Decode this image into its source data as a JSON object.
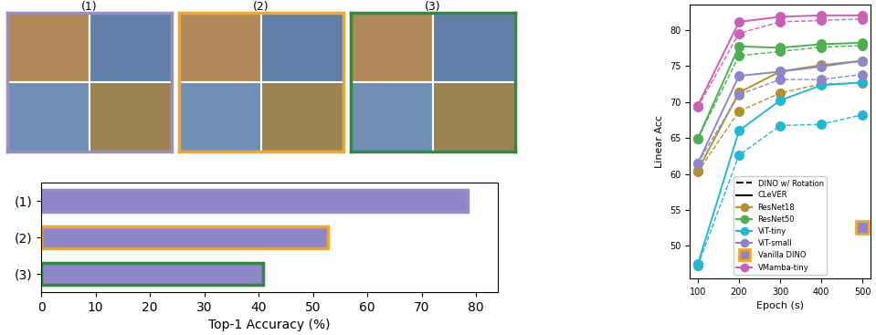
{
  "panels": [
    {
      "label": "(1)",
      "color": "#9b8ec8"
    },
    {
      "label": "(2)",
      "color": "#f5a623"
    },
    {
      "label": "(3)",
      "color": "#2e8b3e"
    }
  ],
  "chart_data": [
    {
      "type": "bar",
      "orientation": "horizontal",
      "categories": [
        "(1)",
        "(2)",
        "(3)"
      ],
      "values": [
        78.5,
        52.8,
        40.8
      ],
      "color": "#8e86c8",
      "x_label": "Top-1 Accuracy (%)",
      "xlim": [
        0,
        84
      ],
      "xticks": [
        0,
        10,
        20,
        30,
        40,
        50,
        60,
        70,
        80
      ],
      "grid": false
    },
    {
      "type": "line",
      "x": [
        100,
        200,
        300,
        400,
        500
      ],
      "x_label": "Epoch (s)",
      "y_label": "Linear Acc",
      "xlim": [
        80,
        520
      ],
      "xticks": [
        100,
        200,
        300,
        400,
        500
      ],
      "ylim": [
        45.5,
        83.5
      ],
      "yticks": [
        50,
        55,
        60,
        65,
        70,
        75,
        80
      ],
      "grid": false,
      "legend": "lower center",
      "line_styles": [
        {
          "name": "DINO w/ Rotation",
          "line_style": "dashed"
        },
        {
          "name": "CLeVER",
          "line_style": "solid"
        }
      ],
      "series": [
        {
          "name": "ResNet18",
          "color": "#b5902a",
          "marker": "o",
          "values": [
            60.5,
            71.3,
            74.2,
            75.1,
            75.7
          ],
          "rotation_values": [
            60.3,
            68.7,
            71.2,
            72.5,
            72.6
          ]
        },
        {
          "name": "ResNet50",
          "color": "#4caf50",
          "marker": "o",
          "values": [
            64.9,
            77.7,
            77.5,
            78.0,
            78.2
          ],
          "rotation_values": [
            64.9,
            76.4,
            77.0,
            77.6,
            77.8
          ]
        },
        {
          "name": "ViT-tiny",
          "color": "#22b8d4",
          "marker": "o",
          "values": [
            47.5,
            66.0,
            70.2,
            72.3,
            72.7
          ],
          "rotation_values": [
            47.3,
            62.6,
            66.7,
            66.9,
            68.2
          ]
        },
        {
          "name": "ViT-small",
          "color": "#8e86c8",
          "marker": "o",
          "values": [
            61.5,
            73.6,
            74.2,
            74.9,
            75.7
          ],
          "rotation_values": [
            61.5,
            71.0,
            73.1,
            73.1,
            73.8
          ]
        },
        {
          "name": "Vanilla DINO",
          "type": "scatter",
          "color": "#8e86c8",
          "marker": "s",
          "x": [
            500
          ],
          "values": [
            52.6
          ]
        },
        {
          "name": "VMamba-tiny",
          "color": "#cc5fb5",
          "marker": "o",
          "values": [
            69.5,
            81.1,
            81.8,
            82.0,
            82.0
          ],
          "rotation_values": [
            69.3,
            79.5,
            81.1,
            81.3,
            81.5
          ]
        }
      ]
    }
  ]
}
